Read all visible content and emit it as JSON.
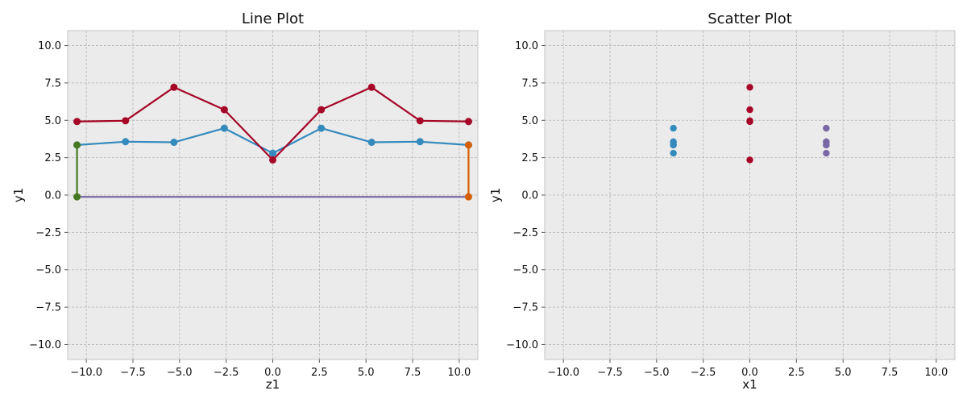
{
  "chart_data": [
    {
      "type": "line",
      "title": "Line Plot",
      "xlabel": "z1",
      "ylabel": "y1",
      "xlim": [
        -11.0,
        11.0
      ],
      "ylim": [
        -11.0,
        11.0
      ],
      "xticks": [
        -10.0,
        -7.5,
        -5.0,
        -2.5,
        0.0,
        2.5,
        5.0,
        7.5,
        10.0
      ],
      "yticks": [
        -10.0,
        -7.5,
        -5.0,
        -2.5,
        0.0,
        2.5,
        5.0,
        7.5,
        10.0
      ],
      "xtick_labels": [
        "−10.0",
        "−7.5",
        "−5.0",
        "−2.5",
        "0.0",
        "2.5",
        "5.0",
        "7.5",
        "10.0"
      ],
      "ytick_labels": [
        "−10.0",
        "−7.5",
        "−5.0",
        "−2.5",
        "0.0",
        "2.5",
        "5.0",
        "7.5",
        "10.0"
      ],
      "grid": true,
      "series": [
        {
          "color": "#348ABD",
          "marker": true,
          "x": [
            -10.5,
            -7.9,
            -5.3,
            -2.6,
            0.0,
            2.6,
            5.3,
            7.9,
            10.5
          ],
          "y": [
            3.35,
            3.57,
            3.53,
            4.47,
            2.8,
            4.47,
            3.53,
            3.57,
            3.35
          ]
        },
        {
          "color": "#A60628",
          "marker": true,
          "x": [
            -10.5,
            -7.9,
            -5.3,
            -2.6,
            0.0,
            2.6,
            5.3,
            7.9,
            10.5
          ],
          "y": [
            4.92,
            4.97,
            7.21,
            5.71,
            2.35,
            5.71,
            7.21,
            4.97,
            4.92
          ]
        },
        {
          "color": "#7A68A6",
          "marker": false,
          "x": [
            -10.5,
            10.5
          ],
          "y": [
            -0.12,
            -0.12
          ]
        },
        {
          "color": "#467821",
          "marker": true,
          "x": [
            -10.5,
            -10.5
          ],
          "y": [
            3.35,
            -0.12
          ]
        },
        {
          "color": "#D55E00",
          "marker": true,
          "x": [
            10.5,
            10.5
          ],
          "y": [
            3.35,
            -0.12
          ]
        }
      ]
    },
    {
      "type": "scatter",
      "title": "Scatter Plot",
      "xlabel": "x1",
      "ylabel": "y1",
      "xlim": [
        -11.0,
        11.0
      ],
      "ylim": [
        -11.0,
        11.0
      ],
      "xticks": [
        -10.0,
        -7.5,
        -5.0,
        -2.5,
        0.0,
        2.5,
        5.0,
        7.5,
        10.0
      ],
      "yticks": [
        -10.0,
        -7.5,
        -5.0,
        -2.5,
        0.0,
        2.5,
        5.0,
        7.5,
        10.0
      ],
      "xtick_labels": [
        "−10.0",
        "−7.5",
        "−5.0",
        "−2.5",
        "0.0",
        "2.5",
        "5.0",
        "7.5",
        "10.0"
      ],
      "ytick_labels": [
        "−10.0",
        "−7.5",
        "−5.0",
        "−2.5",
        "0.0",
        "2.5",
        "5.0",
        "7.5",
        "10.0"
      ],
      "grid": true,
      "series": [
        {
          "color": "#348ABD",
          "x": [
            -4.1,
            -4.1,
            -4.1,
            -4.1,
            -4.1,
            -4.1
          ],
          "y": [
            4.47,
            3.57,
            3.53,
            3.35,
            3.35,
            2.8
          ]
        },
        {
          "color": "#A60628",
          "x": [
            0.0,
            0.0,
            0.0,
            0.0,
            0.0,
            0.0
          ],
          "y": [
            7.21,
            5.71,
            4.97,
            4.92,
            4.92,
            2.35
          ]
        },
        {
          "color": "#7A68A6",
          "x": [
            4.1,
            4.1,
            4.1,
            4.1,
            4.1,
            4.1
          ],
          "y": [
            4.47,
            3.57,
            3.53,
            3.35,
            3.35,
            2.8
          ]
        }
      ]
    }
  ]
}
